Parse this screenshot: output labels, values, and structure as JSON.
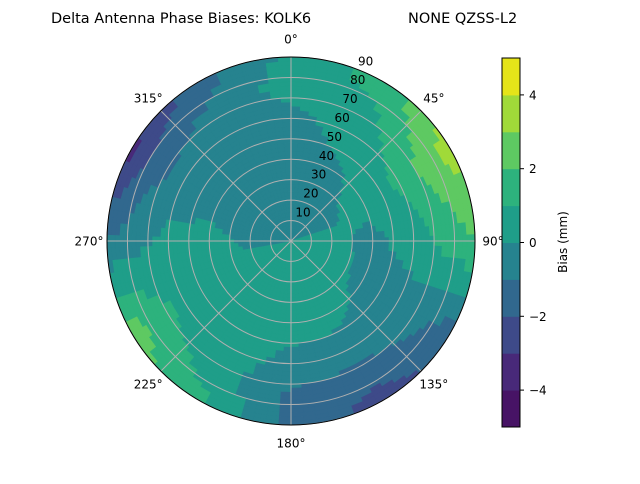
{
  "chart_data": {
    "type": "heatmap",
    "subtype": "polar-contourf",
    "title": "Delta Antenna Phase Biases: KOLK6",
    "subtitle": "NONE QZSS-L2",
    "angular_ticks": [
      "0°",
      "45°",
      "90°",
      "135°",
      "180°",
      "225°",
      "270°",
      "315°"
    ],
    "radial_ticks": [
      "10",
      "20",
      "30",
      "40",
      "50",
      "60",
      "70",
      "80",
      "90"
    ],
    "radial_range": [
      0,
      90
    ],
    "angular_direction": "clockwise from top",
    "grid": true,
    "colorbar": {
      "label": "Bias (mm)",
      "ticks": [
        "4",
        "2",
        "0",
        "−2",
        "−4"
      ],
      "tick_values": [
        4,
        2,
        0,
        -2,
        -4
      ],
      "levels": [
        -5,
        -4,
        -3,
        -2,
        -1,
        0,
        1,
        2,
        3,
        4,
        5
      ],
      "colors": [
        "#471365",
        "#482979",
        "#3e4a89",
        "#31688e",
        "#26838f",
        "#1f9e89",
        "#2db27d",
        "#5ec962",
        "#a0da39",
        "#e5e419"
      ],
      "colormap": "viridis",
      "placement": "right"
    },
    "azimuth_deg": [
      0,
      30,
      60,
      90,
      120,
      150,
      180,
      210,
      240,
      270,
      300,
      330
    ],
    "zenith_deg": [
      0,
      20,
      40,
      60,
      75,
      90
    ],
    "values_mm": [
      [
        0,
        0,
        0,
        0,
        0,
        0,
        0,
        0,
        0,
        0,
        0,
        0
      ],
      [
        -0.5,
        -0.3,
        -0.2,
        0.3,
        0.5,
        0.5,
        0.5,
        0.5,
        0.5,
        -0.3,
        -0.5,
        -0.5
      ],
      [
        -0.5,
        -0.2,
        0.4,
        -0.3,
        -0.3,
        0.3,
        0.4,
        0.5,
        0.6,
        0.4,
        -0.5,
        -0.6
      ],
      [
        -0.4,
        0.5,
        1.2,
        0.5,
        -0.5,
        -0.4,
        -0.3,
        0.4,
        0.7,
        0.3,
        -0.6,
        -0.6
      ],
      [
        0.5,
        0.7,
        2.5,
        1.3,
        -0.8,
        -1.5,
        -1.2,
        0.6,
        1.6,
        -0.3,
        -1.5,
        -0.8
      ],
      [
        0.3,
        1.5,
        3.5,
        2.0,
        -1.5,
        -2.5,
        -1.2,
        1.2,
        2.6,
        -1.0,
        -3.5,
        -1.5
      ]
    ]
  }
}
